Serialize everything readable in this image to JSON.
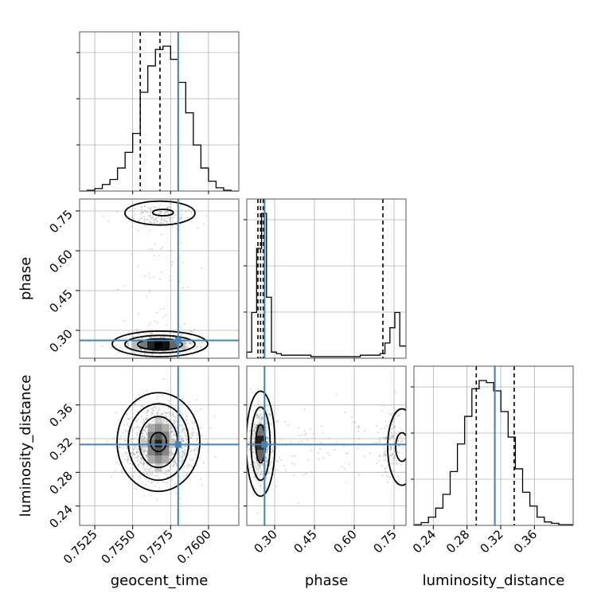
{
  "chart_data": {
    "type": "corner",
    "parameters": [
      "geocent_time",
      "phase",
      "luminosity_distance"
    ],
    "axis_labels": {
      "x": [
        "geocent_time",
        "phase",
        "luminosity_distance"
      ],
      "y": [
        "",
        "phase",
        "luminosity_distance"
      ]
    },
    "ranges": {
      "geocent_time": [
        0.7515,
        0.762
      ],
      "phase": [
        0.195,
        0.795
      ],
      "luminosity_distance": [
        0.217,
        0.406
      ]
    },
    "ticks": {
      "geocent_time": [
        0.7525,
        0.755,
        0.7575,
        0.76
      ],
      "phase": [
        0.3,
        0.45,
        0.6,
        0.75
      ],
      "luminosity_distance": [
        0.24,
        0.28,
        0.32,
        0.36
      ]
    },
    "tick_labels": {
      "geocent_time": [
        "0.7525",
        "0.7550",
        "0.7575",
        "0.7600"
      ],
      "phase": [
        "0.30",
        "0.45",
        "0.60",
        "0.75"
      ],
      "luminosity_distance": [
        "0.24",
        "0.28",
        "0.32",
        "0.36"
      ]
    },
    "truths": {
      "geocent_time": 0.758,
      "phase": 0.262,
      "luminosity_distance": 0.313,
      "color": "#4682b4"
    },
    "quantiles": {
      "geocent_time": [
        0.7555,
        0.7568,
        0.758
      ],
      "phase": [
        0.237,
        0.247,
        0.257,
        0.708
      ],
      "luminosity_distance": [
        0.291,
        0.313,
        0.336
      ]
    },
    "histograms_1d": {
      "geocent_time": {
        "bin_edges": [
          0.7515,
          0.752,
          0.7525,
          0.753,
          0.7535,
          0.754,
          0.7545,
          0.755,
          0.7555,
          0.756,
          0.7565,
          0.757,
          0.7575,
          0.758,
          0.7585,
          0.759,
          0.7595,
          0.76,
          0.7605,
          0.761,
          0.7615,
          0.762
        ],
        "counts": [
          0,
          1,
          3,
          8,
          14,
          28,
          47,
          70,
          120,
          152,
          172,
          176,
          160,
          132,
          95,
          56,
          28,
          12,
          4,
          1,
          0
        ]
      },
      "phase": {
        "bin_edges": [
          0.195,
          0.2136,
          0.2322,
          0.2508,
          0.2694,
          0.288,
          0.3066,
          0.3252,
          0.3438,
          0.3624,
          0.381,
          0.3996,
          0.4182,
          0.4368,
          0.4554,
          0.474,
          0.4926,
          0.5112,
          0.5298,
          0.5484,
          0.567,
          0.5856,
          0.6042,
          0.6228,
          0.6414,
          0.66,
          0.6786,
          0.6972,
          0.7158,
          0.7344,
          0.753,
          0.7716,
          0.795
        ],
        "counts": [
          4,
          30,
          72,
          95,
          40,
          4,
          3,
          2,
          2,
          2,
          2,
          2,
          2,
          1,
          1,
          1,
          1,
          1,
          1,
          1,
          1,
          1,
          1,
          2,
          2,
          2,
          2,
          3,
          10,
          20,
          30,
          8
        ]
      },
      "luminosity_distance": {
        "bin_edges": [
          0.217,
          0.2256,
          0.2342,
          0.2428,
          0.2514,
          0.26,
          0.2686,
          0.2772,
          0.2858,
          0.2944,
          0.303,
          0.3116,
          0.3202,
          0.3288,
          0.3374,
          0.346,
          0.3546,
          0.3632,
          0.3718,
          0.3804,
          0.389,
          0.406
        ],
        "counts": [
          1,
          4,
          12,
          25,
          45,
          78,
          118,
          158,
          198,
          210,
          207,
          195,
          165,
          128,
          82,
          48,
          28,
          12,
          5,
          3,
          1
        ]
      }
    },
    "contour_levels": [
      "0.5 sigma",
      "1 sigma",
      "1.5 sigma",
      "2 sigma"
    ],
    "density_colormap": "greys",
    "contour_color": "#000000"
  }
}
